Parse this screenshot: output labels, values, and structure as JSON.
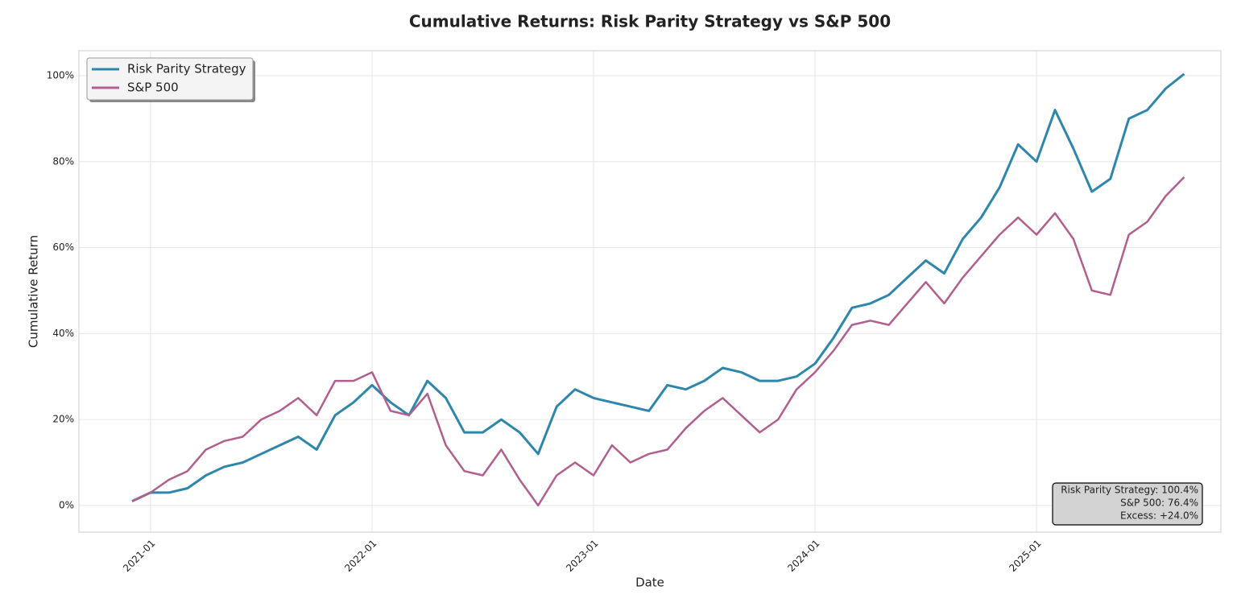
{
  "chart_data": {
    "type": "line",
    "title": "Cumulative Returns: Risk Parity Strategy vs S&P 500",
    "x_label": "Date",
    "y_label": "Cumulative Return",
    "x": [
      "2020-12",
      "2021-01",
      "2021-02",
      "2021-03",
      "2021-04",
      "2021-05",
      "2021-06",
      "2021-07",
      "2021-08",
      "2021-09",
      "2021-10",
      "2021-11",
      "2021-12",
      "2022-01",
      "2022-02",
      "2022-03",
      "2022-04",
      "2022-05",
      "2022-06",
      "2022-07",
      "2022-08",
      "2022-09",
      "2022-10",
      "2022-11",
      "2022-12",
      "2023-01",
      "2023-02",
      "2023-03",
      "2023-04",
      "2023-05",
      "2023-06",
      "2023-07",
      "2023-08",
      "2023-09",
      "2023-10",
      "2023-11",
      "2023-12",
      "2024-01",
      "2024-02",
      "2024-03",
      "2024-04",
      "2024-05",
      "2024-06",
      "2024-07",
      "2024-08",
      "2024-09",
      "2024-10",
      "2024-11",
      "2024-12",
      "2025-01",
      "2025-02",
      "2025-03",
      "2025-04",
      "2025-05",
      "2025-06",
      "2025-07",
      "2025-08",
      "2025-09"
    ],
    "series": [
      {
        "name": "Risk Parity Strategy",
        "color": "#2e86ab",
        "values": [
          1,
          3,
          3,
          4,
          7,
          9,
          10,
          12,
          14,
          16,
          13,
          21,
          24,
          28,
          24,
          21,
          29,
          25,
          17,
          17,
          20,
          17,
          12,
          23,
          27,
          25,
          24,
          23,
          22,
          28,
          27,
          29,
          32,
          31,
          29,
          29,
          30,
          33,
          39,
          46,
          47,
          49,
          53,
          57,
          54,
          62,
          67,
          74,
          84,
          80,
          92,
          83,
          73,
          76,
          90,
          92,
          97,
          100.4
        ]
      },
      {
        "name": "S&P 500",
        "color": "#b05f8f",
        "values": [
          1,
          3,
          6,
          8,
          13,
          15,
          16,
          20,
          22,
          25,
          21,
          29,
          29,
          31,
          22,
          21,
          26,
          14,
          8,
          7,
          13,
          6,
          0,
          7,
          10,
          7,
          14,
          10,
          12,
          13,
          18,
          22,
          25,
          21,
          17,
          20,
          27,
          31,
          36,
          42,
          43,
          42,
          47,
          52,
          47,
          53,
          58,
          63,
          67,
          63,
          68,
          62,
          50,
          49,
          63,
          66,
          72,
          76.4
        ]
      }
    ],
    "ylim": [
      -6.2,
      105.8
    ],
    "yticks": [
      {
        "value": 0,
        "label": "0%"
      },
      {
        "value": 20,
        "label": "20%"
      },
      {
        "value": 40,
        "label": "40%"
      },
      {
        "value": 60,
        "label": "60%"
      },
      {
        "value": 80,
        "label": "80%"
      },
      {
        "value": 100,
        "label": "100%"
      }
    ],
    "xticks": [
      "2021-01",
      "2022-01",
      "2023-01",
      "2024-01",
      "2025-01"
    ],
    "grid": true,
    "legend": "upper left",
    "annotations": [
      "Risk Parity Strategy: 100.4%",
      "S&P 500: 76.4%",
      "Excess: +24.0%"
    ]
  }
}
